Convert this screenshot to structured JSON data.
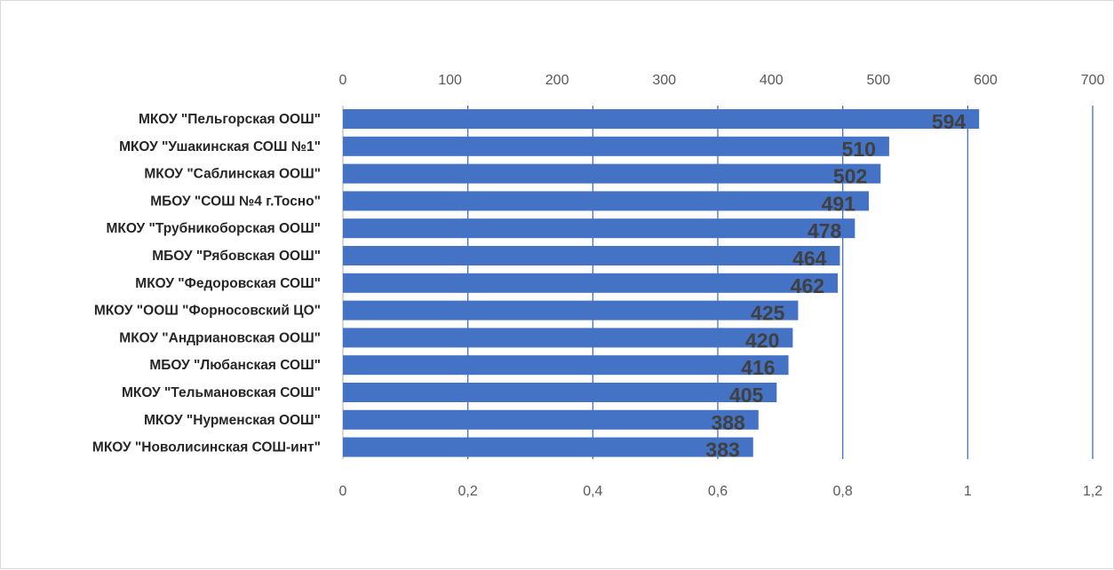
{
  "chart_data": {
    "type": "bar",
    "orientation": "horizontal",
    "title": "",
    "xlabel": "",
    "ylabel": "",
    "categories": [
      "МКОУ \"Пельгорская ООШ\"",
      "МКОУ \"Ушакинская СОШ №1\"",
      "МКОУ \"Саблинская ООШ\"",
      "МБОУ \"СОШ №4 г.Тосно\"",
      "МКОУ \"Трубникоборская ООШ\"",
      "МБОУ \"Рябовская ООШ\"",
      "МКОУ \"Федоровская СОШ\"",
      "МКОУ \"ООШ \"Форносовский ЦО\"",
      "МКОУ \"Андриановская ООШ\"",
      "МБОУ \"Любанская СОШ\"",
      "МКОУ \"Тельмановская СОШ\"",
      "МКОУ \"Нурменская ООШ\"",
      "МКОУ \"Новолисинская СОШ-инт\""
    ],
    "series": [
      {
        "values": [
          594,
          510,
          502,
          491,
          478,
          464,
          462,
          425,
          420,
          416,
          405,
          388,
          383
        ],
        "color": "#4472c4"
      }
    ],
    "top_axis": {
      "range": [
        0,
        700
      ],
      "ticks": [
        "0",
        "100",
        "200",
        "300",
        "400",
        "500",
        "600",
        "700"
      ]
    },
    "bottom_axis": {
      "range": [
        0,
        1.2
      ],
      "ticks": [
        "0",
        "0,2",
        "0,4",
        "0,6",
        "0,8",
        "1",
        "1,2"
      ]
    },
    "gridlines": "vertical, secondary axis at 0.2 steps",
    "legend": "none",
    "data_label_color": "#404040",
    "gridline_color": "#4472c4"
  }
}
